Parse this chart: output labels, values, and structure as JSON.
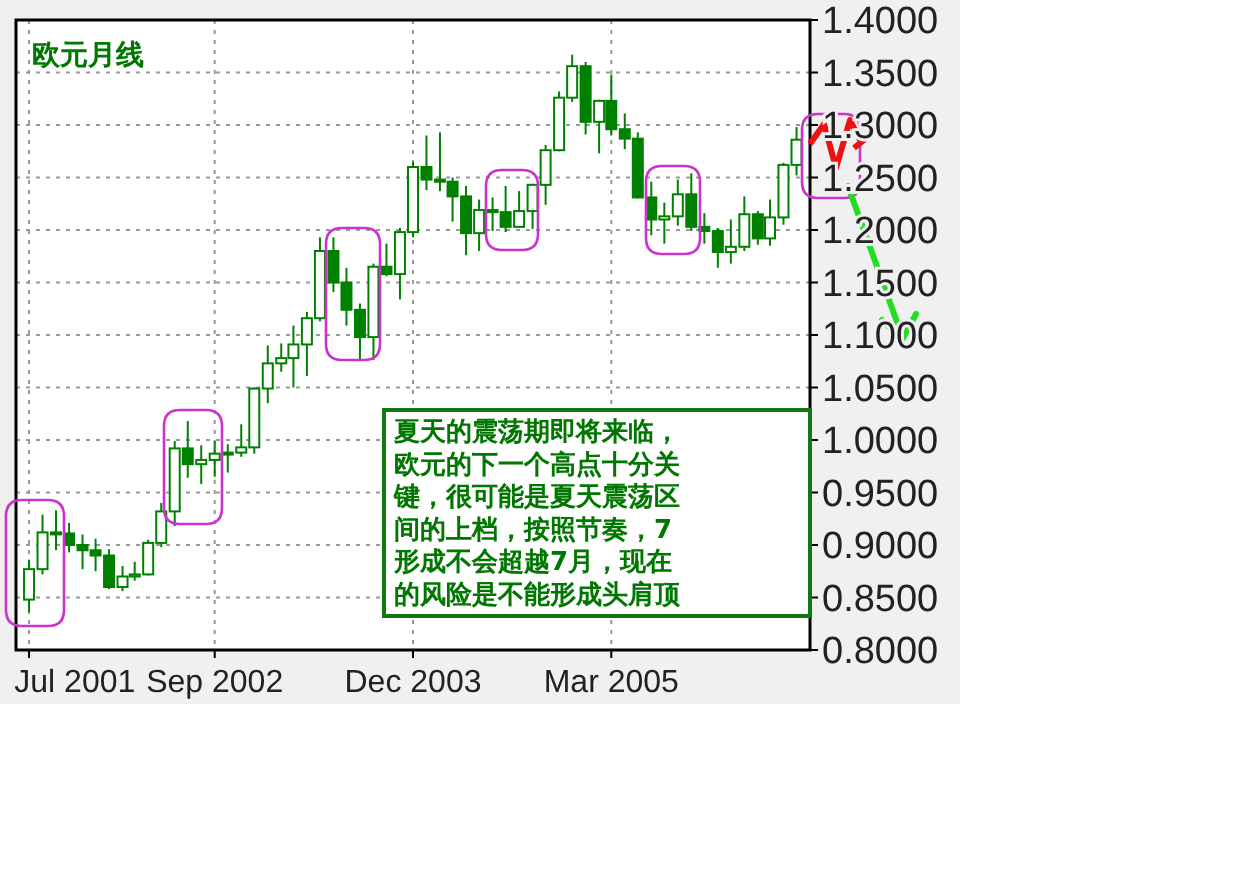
{
  "chart_data": {
    "type": "candlestick",
    "title": "欧元月线",
    "annotations": [
      "夏天的震荡期即将来临，欧元的下一个高点十分关键，很可能是夏天震荡区间的上档，按照节奏，7形成不会超越7月，现在的风险是不能形成头肩顶"
    ],
    "color": "#008000",
    "grid": true,
    "xlim": [
      "2001-06",
      "2006-06"
    ],
    "xticks": [
      {
        "value": "2001-07",
        "label": "Jul 2001"
      },
      {
        "value": "2002-09",
        "label": "Sep 2002"
      },
      {
        "value": "2003-12",
        "label": "Dec 2003"
      },
      {
        "value": "2005-03",
        "label": "Mar 2005"
      }
    ],
    "ylim": [
      0.8,
      1.4
    ],
    "yticks": [
      {
        "value": 0.8,
        "label": "0.8000"
      },
      {
        "value": 0.85,
        "label": "0.8500"
      },
      {
        "value": 0.9,
        "label": "0.9000"
      },
      {
        "value": 0.95,
        "label": "0.9500"
      },
      {
        "value": 1.0,
        "label": "1.0000"
      },
      {
        "value": 1.05,
        "label": "1.0500"
      },
      {
        "value": 1.1,
        "label": "1.1000"
      },
      {
        "value": 1.15,
        "label": "1.1500"
      },
      {
        "value": 1.2,
        "label": "1.2000"
      },
      {
        "value": 1.25,
        "label": "1.2500"
      },
      {
        "value": 1.3,
        "label": "1.3000"
      },
      {
        "value": 1.35,
        "label": "1.3500"
      },
      {
        "value": 1.4,
        "label": "1.4000"
      }
    ],
    "x": [
      "2001-07",
      "2001-08",
      "2001-09",
      "2001-10",
      "2001-11",
      "2001-12",
      "2002-01",
      "2002-02",
      "2002-03",
      "2002-04",
      "2002-05",
      "2002-06",
      "2002-07",
      "2002-08",
      "2002-09",
      "2002-10",
      "2002-11",
      "2002-12",
      "2003-01",
      "2003-02",
      "2003-03",
      "2003-04",
      "2003-05",
      "2003-06",
      "2003-07",
      "2003-08",
      "2003-09",
      "2003-10",
      "2003-11",
      "2003-12",
      "2004-01",
      "2004-02",
      "2004-03",
      "2004-04",
      "2004-05",
      "2004-06",
      "2004-07",
      "2004-08",
      "2004-09",
      "2004-10",
      "2004-11",
      "2004-12",
      "2005-01",
      "2005-02",
      "2005-03",
      "2005-04",
      "2005-05",
      "2005-06",
      "2005-07",
      "2005-08",
      "2005-09",
      "2005-10",
      "2005-11",
      "2005-12",
      "2006-01",
      "2006-02",
      "2006-03",
      "2006-04",
      "2006-05"
    ],
    "ohlc": [
      [
        0.848,
        0.886,
        0.836,
        0.877
      ],
      [
        0.877,
        0.929,
        0.872,
        0.912
      ],
      [
        0.912,
        0.933,
        0.895,
        0.911
      ],
      [
        0.911,
        0.921,
        0.893,
        0.9
      ],
      [
        0.9,
        0.91,
        0.877,
        0.895
      ],
      [
        0.895,
        0.906,
        0.875,
        0.89
      ],
      [
        0.89,
        0.896,
        0.858,
        0.86
      ],
      [
        0.86,
        0.88,
        0.856,
        0.87
      ],
      [
        0.87,
        0.884,
        0.866,
        0.872
      ],
      [
        0.872,
        0.905,
        0.871,
        0.902
      ],
      [
        0.902,
        0.94,
        0.898,
        0.932
      ],
      [
        0.932,
        0.999,
        0.918,
        0.992
      ],
      [
        0.992,
        1.018,
        0.964,
        0.977
      ],
      [
        0.977,
        0.995,
        0.958,
        0.981
      ],
      [
        0.981,
        0.999,
        0.965,
        0.987
      ],
      [
        0.987,
        0.996,
        0.969,
        0.988
      ],
      [
        0.988,
        1.015,
        0.984,
        0.993
      ],
      [
        0.993,
        1.05,
        0.987,
        1.049
      ],
      [
        1.049,
        1.09,
        1.035,
        1.073
      ],
      [
        1.073,
        1.092,
        1.065,
        1.078
      ],
      [
        1.078,
        1.109,
        1.05,
        1.091
      ],
      [
        1.091,
        1.122,
        1.061,
        1.116
      ],
      [
        1.116,
        1.193,
        1.113,
        1.18
      ],
      [
        1.18,
        1.193,
        1.141,
        1.15
      ],
      [
        1.15,
        1.164,
        1.109,
        1.124
      ],
      [
        1.124,
        1.13,
        1.077,
        1.098
      ],
      [
        1.098,
        1.168,
        1.076,
        1.165
      ],
      [
        1.165,
        1.187,
        1.156,
        1.158
      ],
      [
        1.158,
        1.202,
        1.134,
        1.198
      ],
      [
        1.198,
        1.265,
        1.193,
        1.26
      ],
      [
        1.26,
        1.29,
        1.238,
        1.248
      ],
      [
        1.248,
        1.293,
        1.237,
        1.246
      ],
      [
        1.246,
        1.25,
        1.208,
        1.232
      ],
      [
        1.232,
        1.242,
        1.176,
        1.197
      ],
      [
        1.197,
        1.229,
        1.18,
        1.219
      ],
      [
        1.219,
        1.231,
        1.199,
        1.217
      ],
      [
        1.217,
        1.242,
        1.198,
        1.203
      ],
      [
        1.203,
        1.237,
        1.203,
        1.218
      ],
      [
        1.218,
        1.244,
        1.201,
        1.243
      ],
      [
        1.243,
        1.281,
        1.224,
        1.276
      ],
      [
        1.276,
        1.332,
        1.275,
        1.326
      ],
      [
        1.326,
        1.367,
        1.322,
        1.356
      ],
      [
        1.356,
        1.36,
        1.291,
        1.303
      ],
      [
        1.303,
        1.324,
        1.273,
        1.323
      ],
      [
        1.323,
        1.348,
        1.29,
        1.296
      ],
      [
        1.296,
        1.311,
        1.277,
        1.287
      ],
      [
        1.287,
        1.293,
        1.23,
        1.231
      ],
      [
        1.231,
        1.246,
        1.195,
        1.21
      ],
      [
        1.21,
        1.226,
        1.187,
        1.213
      ],
      [
        1.213,
        1.248,
        1.204,
        1.234
      ],
      [
        1.234,
        1.254,
        1.199,
        1.203
      ],
      [
        1.203,
        1.216,
        1.187,
        1.199
      ],
      [
        1.199,
        1.202,
        1.164,
        1.179
      ],
      [
        1.179,
        1.21,
        1.168,
        1.184
      ],
      [
        1.184,
        1.232,
        1.18,
        1.215
      ],
      [
        1.215,
        1.218,
        1.186,
        1.192
      ],
      [
        1.192,
        1.229,
        1.185,
        1.212
      ],
      [
        1.212,
        1.264,
        1.205,
        1.262
      ],
      [
        1.262,
        1.298,
        1.252,
        1.286
      ]
    ]
  }
}
